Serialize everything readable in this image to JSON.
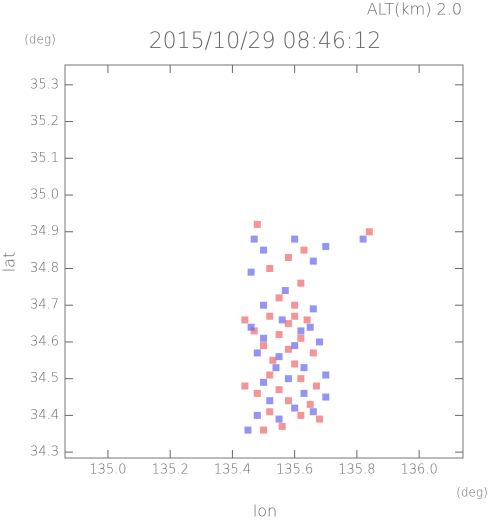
{
  "chart_data": {
    "type": "scatter",
    "title": "2015/10/29 08:46:12",
    "subtitle": "ALT(km) 2.0",
    "x_label": "lon",
    "y_label": "lat",
    "x_unit": "(deg)",
    "y_unit": "(deg)",
    "xlim": [
      134.862,
      136.141
    ],
    "ylim": [
      34.284,
      35.354
    ],
    "xticks": [
      {
        "value": 135.0,
        "label": "135.0"
      },
      135.2,
      135.4,
      135.6,
      135.8,
      {
        "value": 136.0,
        "label": "136.0"
      }
    ],
    "yticks": [
      34.3,
      34.4,
      34.5,
      34.6,
      34.7,
      34.8,
      34.9,
      {
        "value": 35.0,
        "label": "35.0"
      },
      35.1,
      35.2,
      35.3
    ],
    "grid": false,
    "series": [
      {
        "color": "#f07070",
        "x": [
          135.48,
          135.84,
          135.63,
          135.58,
          135.52,
          135.62,
          135.55,
          135.6,
          135.44,
          135.52,
          135.58,
          135.64,
          135.47,
          135.55,
          135.62,
          135.5,
          135.58,
          135.66,
          135.53,
          135.6,
          135.52,
          135.62,
          135.67,
          135.55,
          135.48,
          135.58,
          135.65,
          135.62,
          135.52,
          135.56,
          135.5,
          135.68,
          135.44,
          135.6
        ],
        "values": [
          34.92,
          34.9,
          34.85,
          34.83,
          34.8,
          34.76,
          34.72,
          34.7,
          34.66,
          34.67,
          34.65,
          34.66,
          34.63,
          34.62,
          34.61,
          34.59,
          34.58,
          34.57,
          34.55,
          34.54,
          34.51,
          34.5,
          34.48,
          34.47,
          34.46,
          34.44,
          34.43,
          34.4,
          34.41,
          34.37,
          34.36,
          34.39,
          34.48,
          34.67
        ]
      },
      {
        "color": "#7070f0",
        "x": [
          135.47,
          135.82,
          135.5,
          135.6,
          135.66,
          135.46,
          135.7,
          135.57,
          135.5,
          135.66,
          135.46,
          135.56,
          135.62,
          135.5,
          135.6,
          135.68,
          135.48,
          135.55,
          135.63,
          135.7,
          135.5,
          135.58,
          135.63,
          135.52,
          135.7,
          135.6,
          135.48,
          135.55,
          135.45,
          135.66,
          135.54,
          135.65
        ],
        "values": [
          34.88,
          34.88,
          34.85,
          34.88,
          34.82,
          34.79,
          34.86,
          34.74,
          34.7,
          34.69,
          34.64,
          34.66,
          34.63,
          34.61,
          34.59,
          34.6,
          34.57,
          34.56,
          34.53,
          34.51,
          34.49,
          34.5,
          34.46,
          34.44,
          34.45,
          34.42,
          34.4,
          34.39,
          34.36,
          34.41,
          34.53,
          34.64
        ]
      }
    ]
  }
}
